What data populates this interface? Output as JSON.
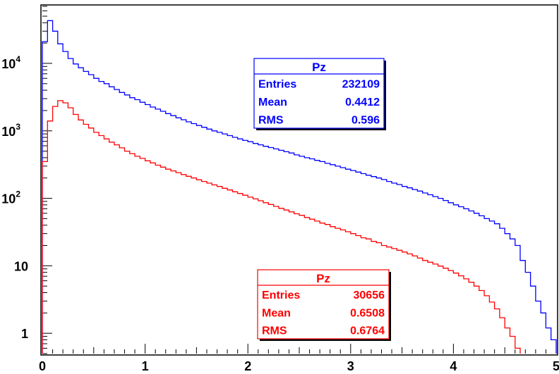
{
  "chart_data": {
    "type": "histogram",
    "title": "",
    "xlabel": "",
    "ylabel": "",
    "x_scale": "linear",
    "y_scale": "log",
    "xlim": [
      0,
      5
    ],
    "ylim": [
      0.5,
      70000
    ],
    "x_tick_labels": [
      "0",
      "1",
      "2",
      "3",
      "4",
      "5"
    ],
    "y_tick_labels": [
      {
        "value": 1,
        "base": "1",
        "exp": ""
      },
      {
        "value": 10,
        "base": "10",
        "exp": ""
      },
      {
        "value": 100,
        "base": "10",
        "exp": "2"
      },
      {
        "value": 1000,
        "base": "10",
        "exp": "3"
      },
      {
        "value": 10000,
        "base": "10",
        "exp": "4"
      }
    ],
    "grid": false,
    "bin_edges_start": 0,
    "bin_width": 0.05,
    "series": [
      {
        "name": "Pz",
        "color": "#0000ff",
        "stats": {
          "entries_label": "Entries",
          "entries": "232109",
          "mean_label": "Mean",
          "mean": "0.4412",
          "rms_label": "RMS",
          "rms": "0.596"
        },
        "values": [
          21000,
          43000,
          30000,
          19500,
          15000,
          11800,
          9800,
          8600,
          7600,
          6800,
          6000,
          5400,
          5000,
          4500,
          4100,
          3700,
          3400,
          3100,
          2900,
          2650,
          2450,
          2250,
          2100,
          1950,
          1800,
          1680,
          1560,
          1460,
          1360,
          1280,
          1200,
          1130,
          1060,
          1000,
          950,
          900,
          850,
          800,
          760,
          720,
          690,
          650,
          620,
          590,
          565,
          540,
          515,
          490,
          470,
          440,
          420,
          400,
          385,
          365,
          350,
          330,
          315,
          300,
          285,
          270,
          258,
          245,
          232,
          220,
          210,
          200,
          190,
          178,
          168,
          160,
          150,
          143,
          135,
          128,
          120,
          113,
          106,
          100,
          93,
          86,
          80,
          75,
          70,
          65,
          60,
          55,
          50,
          46,
          42,
          36,
          30,
          25,
          20,
          12,
          8,
          5,
          3,
          2,
          1.2,
          0.8
        ]
      },
      {
        "name": "Pz",
        "color": "#ff0000",
        "stats": {
          "entries_label": "Entries",
          "entries": "30656",
          "mean_label": "Mean",
          "mean": "0.6508",
          "rms_label": "RMS",
          "rms": "0.6764"
        },
        "values": [
          350,
          1400,
          2300,
          2800,
          2600,
          2200,
          1750,
          1450,
          1250,
          1100,
          950,
          850,
          760,
          680,
          620,
          560,
          500,
          460,
          420,
          390,
          360,
          335,
          310,
          290,
          270,
          255,
          240,
          225,
          212,
          200,
          188,
          178,
          168,
          158,
          150,
          141,
          133,
          125,
          118,
          111,
          104,
          98,
          92,
          86,
          81,
          76,
          71,
          67,
          63,
          59,
          56,
          52,
          49,
          46,
          43,
          41,
          38,
          36,
          34,
          32,
          30,
          28,
          26,
          25,
          23,
          22,
          20,
          19,
          18,
          17,
          16,
          15,
          14,
          13,
          12,
          11.3,
          10.6,
          9.9,
          9.2,
          8.5,
          7.8,
          7.1,
          6.4,
          5.7,
          5,
          4.3,
          3.6,
          2.9,
          2.3,
          1.7,
          1.2,
          0.9,
          0.6,
          0.45
        ]
      }
    ]
  }
}
